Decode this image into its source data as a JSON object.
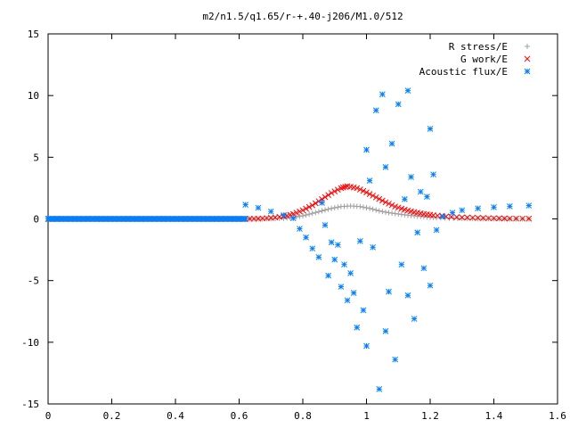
{
  "chart_data": {
    "type": "scatter",
    "title": "m2/n1.5/q1.65/r-+.40-j206/M1.0/512",
    "xlabel": "",
    "ylabel": "",
    "xlim": [
      0,
      1.6
    ],
    "ylim": [
      -15,
      15
    ],
    "x_ticks": [
      "0",
      "0.2",
      "0.4",
      "0.6",
      "0.8",
      "1",
      "1.2",
      "1.4",
      "1.6"
    ],
    "y_ticks": [
      "15",
      "10",
      "5",
      "0",
      "-5",
      "-10",
      "-15"
    ],
    "grid": false,
    "legend_position": "top-right",
    "series": [
      {
        "name": "R stress/E",
        "marker": "+",
        "color": "#a0a0a0",
        "points": [
          [
            0.62,
            0.0
          ],
          [
            0.66,
            0.0
          ],
          [
            0.7,
            0.02
          ],
          [
            0.74,
            0.05
          ],
          [
            0.77,
            0.12
          ],
          [
            0.8,
            0.25
          ],
          [
            0.83,
            0.45
          ],
          [
            0.86,
            0.65
          ],
          [
            0.89,
            0.85
          ],
          [
            0.92,
            1.0
          ],
          [
            0.95,
            1.05
          ],
          [
            0.98,
            1.0
          ],
          [
            1.01,
            0.85
          ],
          [
            1.04,
            0.65
          ],
          [
            1.07,
            0.5
          ],
          [
            1.1,
            0.4
          ],
          [
            1.13,
            0.3
          ],
          [
            1.16,
            0.22
          ],
          [
            1.19,
            0.15
          ],
          [
            1.22,
            0.1
          ],
          [
            1.26,
            0.06
          ],
          [
            1.3,
            0.03
          ],
          [
            1.35,
            0.02
          ],
          [
            1.4,
            0.01
          ],
          [
            1.45,
            0.0
          ],
          [
            1.51,
            0.0
          ]
        ]
      },
      {
        "name": "G work/E",
        "marker": "x",
        "color": "#ff0000",
        "points": [
          [
            0.62,
            0.0
          ],
          [
            0.66,
            0.02
          ],
          [
            0.7,
            0.08
          ],
          [
            0.74,
            0.2
          ],
          [
            0.77,
            0.4
          ],
          [
            0.8,
            0.7
          ],
          [
            0.83,
            1.1
          ],
          [
            0.86,
            1.6
          ],
          [
            0.89,
            2.1
          ],
          [
            0.92,
            2.5
          ],
          [
            0.94,
            2.65
          ],
          [
            0.97,
            2.5
          ],
          [
            1.0,
            2.15
          ],
          [
            1.03,
            1.75
          ],
          [
            1.06,
            1.35
          ],
          [
            1.09,
            1.0
          ],
          [
            1.12,
            0.75
          ],
          [
            1.15,
            0.55
          ],
          [
            1.18,
            0.4
          ],
          [
            1.21,
            0.3
          ],
          [
            1.25,
            0.2
          ],
          [
            1.3,
            0.12
          ],
          [
            1.35,
            0.08
          ],
          [
            1.4,
            0.05
          ],
          [
            1.45,
            0.03
          ],
          [
            1.51,
            0.02
          ]
        ]
      },
      {
        "name": "Acoustic flux/E",
        "marker": "*",
        "color": "#0080ff",
        "points": [
          [
            0.62,
            1.15
          ],
          [
            0.66,
            0.9
          ],
          [
            0.7,
            0.6
          ],
          [
            0.74,
            0.3
          ],
          [
            0.77,
            0.05
          ],
          [
            0.79,
            -0.8
          ],
          [
            0.81,
            -1.5
          ],
          [
            0.83,
            -2.4
          ],
          [
            0.85,
            -3.1
          ],
          [
            0.86,
            1.3
          ],
          [
            0.87,
            -0.5
          ],
          [
            0.88,
            -4.6
          ],
          [
            0.89,
            -1.9
          ],
          [
            0.9,
            -3.3
          ],
          [
            0.91,
            -2.1
          ],
          [
            0.92,
            -5.5
          ],
          [
            0.93,
            -3.7
          ],
          [
            0.94,
            -6.6
          ],
          [
            0.95,
            -4.4
          ],
          [
            0.96,
            -6.0
          ],
          [
            0.97,
            -8.8
          ],
          [
            0.98,
            -1.8
          ],
          [
            0.99,
            -7.4
          ],
          [
            1.0,
            5.6
          ],
          [
            1.0,
            -10.3
          ],
          [
            1.01,
            3.1
          ],
          [
            1.02,
            -2.3
          ],
          [
            1.03,
            8.8
          ],
          [
            1.04,
            -13.8
          ],
          [
            1.05,
            10.1
          ],
          [
            1.06,
            4.2
          ],
          [
            1.06,
            -9.1
          ],
          [
            1.07,
            -5.9
          ],
          [
            1.08,
            6.1
          ],
          [
            1.09,
            -11.4
          ],
          [
            1.1,
            9.3
          ],
          [
            1.11,
            -3.7
          ],
          [
            1.12,
            1.6
          ],
          [
            1.13,
            -6.2
          ],
          [
            1.13,
            10.4
          ],
          [
            1.14,
            3.4
          ],
          [
            1.15,
            -8.1
          ],
          [
            1.16,
            -1.1
          ],
          [
            1.17,
            2.2
          ],
          [
            1.18,
            -4.0
          ],
          [
            1.19,
            1.8
          ],
          [
            1.2,
            7.3
          ],
          [
            1.2,
            -5.4
          ],
          [
            1.21,
            3.6
          ],
          [
            1.22,
            -0.9
          ],
          [
            1.24,
            0.2
          ],
          [
            1.27,
            0.5
          ],
          [
            1.3,
            0.7
          ],
          [
            1.35,
            0.85
          ],
          [
            1.4,
            0.95
          ],
          [
            1.45,
            1.02
          ],
          [
            1.51,
            1.08
          ]
        ]
      }
    ]
  }
}
